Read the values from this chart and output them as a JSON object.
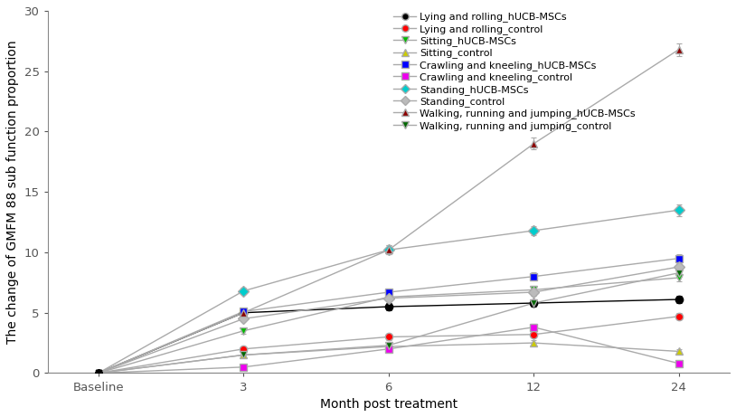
{
  "x_labels": [
    "Baseline",
    "3",
    "6",
    "12",
    "24"
  ],
  "x_positions": [
    0,
    1,
    2,
    3,
    4
  ],
  "xlabel": "Month post treatment",
  "ylabel": "The change of GMFM 88 sub function proportion",
  "ylim": [
    0,
    30
  ],
  "yticks": [
    0,
    5,
    10,
    15,
    20,
    25,
    30
  ],
  "series": [
    {
      "label": "Lying and rolling_hUCB-MSCs",
      "line_color": "#000000",
      "marker": "o",
      "markerfacecolor": "#000000",
      "markeredgecolor": "#000000",
      "markersize": 6,
      "values": [
        0,
        5.0,
        5.5,
        5.8,
        6.1
      ],
      "errors": [
        0,
        0.25,
        0.28,
        0.28,
        0.3
      ]
    },
    {
      "label": "Lying and rolling_control",
      "line_color": "#aaaaaa",
      "marker": "o",
      "markerfacecolor": "#ff0000",
      "markeredgecolor": "#aaaaaa",
      "markersize": 6,
      "values": [
        0,
        2.0,
        3.0,
        3.2,
        4.7
      ],
      "errors": [
        0,
        0.2,
        0.25,
        0.25,
        0.28
      ]
    },
    {
      "label": "Sitting_hUCB-MSCs",
      "line_color": "#aaaaaa",
      "marker": "v",
      "markerfacecolor": "#00bb00",
      "markeredgecolor": "#aaaaaa",
      "markersize": 6,
      "values": [
        0,
        3.5,
        6.3,
        6.9,
        7.9
      ],
      "errors": [
        0,
        0.22,
        0.28,
        0.3,
        0.3
      ]
    },
    {
      "label": "Sitting_control",
      "line_color": "#aaaaaa",
      "marker": "^",
      "markerfacecolor": "#cccc00",
      "markeredgecolor": "#aaaaaa",
      "markersize": 6,
      "values": [
        0,
        1.5,
        2.2,
        2.5,
        1.8
      ],
      "errors": [
        0,
        0.15,
        0.18,
        0.2,
        0.18
      ]
    },
    {
      "label": "Crawling and kneeling_hUCB-MSCs",
      "line_color": "#aaaaaa",
      "marker": "s",
      "markerfacecolor": "#0000ff",
      "markeredgecolor": "#aaaaaa",
      "markersize": 6,
      "values": [
        0,
        5.1,
        6.7,
        8.0,
        9.5
      ],
      "errors": [
        0,
        0.22,
        0.28,
        0.32,
        0.35
      ]
    },
    {
      "label": "Crawling and kneeling_control",
      "line_color": "#aaaaaa",
      "marker": "s",
      "markerfacecolor": "#ee00ee",
      "markeredgecolor": "#aaaaaa",
      "markersize": 6,
      "values": [
        0,
        0.5,
        2.0,
        3.8,
        0.8
      ],
      "errors": [
        0,
        0.12,
        0.18,
        0.28,
        0.12
      ]
    },
    {
      "label": "Standing_hUCB-MSCs",
      "line_color": "#aaaaaa",
      "marker": "D",
      "markerfacecolor": "#00cccc",
      "markeredgecolor": "#aaaaaa",
      "markersize": 6,
      "values": [
        0,
        6.8,
        10.2,
        11.8,
        13.5
      ],
      "errors": [
        0,
        0.28,
        0.38,
        0.4,
        0.48
      ]
    },
    {
      "label": "Standing_control",
      "line_color": "#aaaaaa",
      "marker": "D",
      "markerfacecolor": "#bbbbbb",
      "markeredgecolor": "#aaaaaa",
      "markersize": 6,
      "values": [
        0,
        4.5,
        6.2,
        6.7,
        8.8
      ],
      "errors": [
        0,
        0.2,
        0.28,
        0.28,
        0.3
      ]
    },
    {
      "label": "Walking, running and jumping_hUCB-MSCs",
      "line_color": "#aaaaaa",
      "marker": "^",
      "markerfacecolor": "#8b0000",
      "markeredgecolor": "#aaaaaa",
      "markersize": 6,
      "values": [
        0,
        5.0,
        10.2,
        19.0,
        26.8
      ],
      "errors": [
        0,
        0.22,
        0.38,
        0.48,
        0.52
      ]
    },
    {
      "label": "Walking, running and jumping_control",
      "line_color": "#aaaaaa",
      "marker": "v",
      "markerfacecolor": "#006600",
      "markeredgecolor": "#aaaaaa",
      "markersize": 6,
      "values": [
        0,
        1.5,
        2.3,
        5.8,
        8.3
      ],
      "errors": [
        0,
        0.15,
        0.2,
        0.3,
        0.35
      ]
    }
  ],
  "background_color": "#ffffff",
  "legend_fontsize": 8,
  "axis_fontsize": 10,
  "tick_fontsize": 9.5
}
